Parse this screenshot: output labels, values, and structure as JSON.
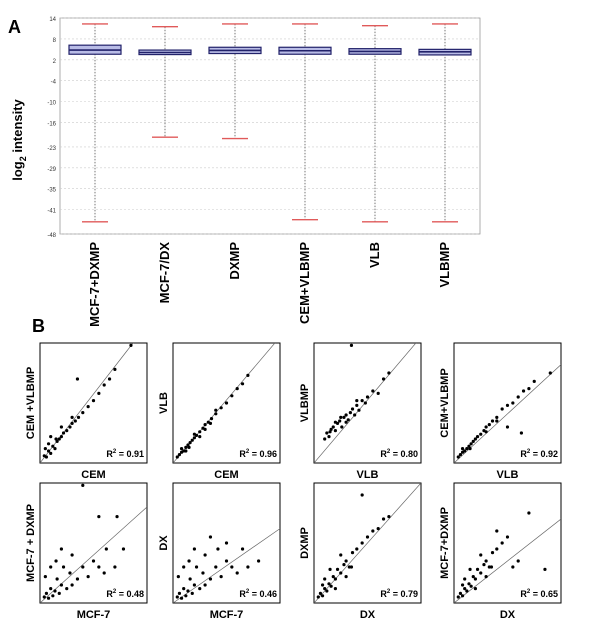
{
  "panel_a": {
    "label": "A",
    "ylabel": "log",
    "ylabel_sub": "2",
    "ylabel_rest": " intensity",
    "colors": {
      "box_fill": "#b9bce6",
      "box_stroke": "#22226a",
      "whisker_cap": "#e05a5a",
      "grid": "#cccccc"
    }
  },
  "panel_b": {
    "label": "B"
  },
  "chart_data": [
    {
      "type": "box",
      "title": "",
      "ylabel": "log2 intensity",
      "ylim": [
        -48,
        14
      ],
      "yticks": [
        14,
        8,
        2,
        -4,
        -10,
        -16,
        -23,
        -29,
        -35,
        -41,
        -48
      ],
      "categories": [
        "MCF-7+DXMP",
        "MCF-7/DX",
        "DXMP",
        "CEM+VLBMP",
        "VLB",
        "VLBMP"
      ],
      "whisker_high": [
        12.3,
        11.5,
        12.3,
        12.3,
        11.8,
        12.3
      ],
      "q3": [
        6.2,
        4.8,
        5.6,
        5.6,
        5.2,
        5.0
      ],
      "median": [
        4.8,
        4.1,
        4.7,
        4.6,
        4.4,
        4.3
      ],
      "q1": [
        3.6,
        3.5,
        3.8,
        3.6,
        3.6,
        3.4
      ],
      "whisker_low": [
        -44.5,
        -20.2,
        -20.6,
        -43.9,
        -44.5,
        -44.5
      ]
    },
    {
      "type": "scatter",
      "xlabel": "CEM",
      "ylabel": "CEM +VLBMP",
      "r2_label": "R",
      "r2_value": " = 0.91",
      "fit": [
        [
          0,
          0
        ],
        [
          1,
          1.15
        ]
      ],
      "points": [
        [
          0.04,
          0.06
        ],
        [
          0.06,
          0.05
        ],
        [
          0.08,
          0.1
        ],
        [
          0.1,
          0.08
        ],
        [
          0.12,
          0.14
        ],
        [
          0.14,
          0.12
        ],
        [
          0.05,
          0.12
        ],
        [
          0.16,
          0.18
        ],
        [
          0.18,
          0.2
        ],
        [
          0.2,
          0.22
        ],
        [
          0.22,
          0.25
        ],
        [
          0.25,
          0.27
        ],
        [
          0.28,
          0.3
        ],
        [
          0.3,
          0.33
        ],
        [
          0.33,
          0.35
        ],
        [
          0.36,
          0.38
        ],
        [
          0.4,
          0.42
        ],
        [
          0.45,
          0.47
        ],
        [
          0.5,
          0.52
        ],
        [
          0.55,
          0.58
        ],
        [
          0.6,
          0.65
        ],
        [
          0.65,
          0.7
        ],
        [
          0.7,
          0.78
        ],
        [
          0.35,
          0.7
        ],
        [
          0.85,
          0.98
        ],
        [
          0.1,
          0.22
        ],
        [
          0.2,
          0.3
        ],
        [
          0.3,
          0.38
        ],
        [
          0.15,
          0.2
        ],
        [
          0.08,
          0.16
        ]
      ]
    },
    {
      "type": "scatter",
      "xlabel": "CEM",
      "ylabel": "VLB",
      "r2_label": "R",
      "r2_value": " = 0.96",
      "fit": [
        [
          0,
          0
        ],
        [
          1,
          1.05
        ]
      ],
      "points": [
        [
          0.04,
          0.05
        ],
        [
          0.06,
          0.07
        ],
        [
          0.08,
          0.09
        ],
        [
          0.1,
          0.1
        ],
        [
          0.12,
          0.13
        ],
        [
          0.14,
          0.15
        ],
        [
          0.16,
          0.17
        ],
        [
          0.18,
          0.19
        ],
        [
          0.2,
          0.21
        ],
        [
          0.22,
          0.23
        ],
        [
          0.25,
          0.26
        ],
        [
          0.28,
          0.29
        ],
        [
          0.3,
          0.32
        ],
        [
          0.33,
          0.34
        ],
        [
          0.36,
          0.37
        ],
        [
          0.4,
          0.41
        ],
        [
          0.45,
          0.46
        ],
        [
          0.5,
          0.5
        ],
        [
          0.55,
          0.56
        ],
        [
          0.6,
          0.62
        ],
        [
          0.65,
          0.66
        ],
        [
          0.7,
          0.73
        ],
        [
          0.08,
          0.12
        ],
        [
          0.12,
          0.1
        ],
        [
          0.2,
          0.24
        ],
        [
          0.3,
          0.28
        ],
        [
          0.4,
          0.44
        ],
        [
          0.15,
          0.13
        ],
        [
          0.25,
          0.22
        ],
        [
          0.35,
          0.33
        ]
      ]
    },
    {
      "type": "scatter",
      "xlabel": "VLB",
      "ylabel": "VLBMP",
      "r2_label": "R",
      "r2_value": " = 0.80",
      "fit": [
        [
          0,
          0
        ],
        [
          1,
          1.05
        ]
      ],
      "points": [
        [
          0.1,
          0.2
        ],
        [
          0.12,
          0.25
        ],
        [
          0.14,
          0.22
        ],
        [
          0.16,
          0.28
        ],
        [
          0.18,
          0.3
        ],
        [
          0.2,
          0.27
        ],
        [
          0.22,
          0.33
        ],
        [
          0.24,
          0.35
        ],
        [
          0.26,
          0.3
        ],
        [
          0.28,
          0.38
        ],
        [
          0.3,
          0.4
        ],
        [
          0.32,
          0.36
        ],
        [
          0.34,
          0.42
        ],
        [
          0.36,
          0.45
        ],
        [
          0.38,
          0.4
        ],
        [
          0.4,
          0.48
        ],
        [
          0.42,
          0.44
        ],
        [
          0.45,
          0.52
        ],
        [
          0.5,
          0.55
        ],
        [
          0.55,
          0.6
        ],
        [
          0.6,
          0.58
        ],
        [
          0.65,
          0.7
        ],
        [
          0.7,
          0.75
        ],
        [
          0.35,
          0.98
        ],
        [
          0.15,
          0.26
        ],
        [
          0.2,
          0.34
        ],
        [
          0.25,
          0.38
        ],
        [
          0.3,
          0.34
        ],
        [
          0.4,
          0.52
        ],
        [
          0.48,
          0.5
        ]
      ]
    },
    {
      "type": "scatter",
      "xlabel": "VLB",
      "ylabel": "CEM+VLBMP",
      "r2_label": "R",
      "r2_value": " = 0.92",
      "fit": [
        [
          0,
          0
        ],
        [
          1,
          0.82
        ]
      ],
      "points": [
        [
          0.04,
          0.05
        ],
        [
          0.06,
          0.07
        ],
        [
          0.08,
          0.09
        ],
        [
          0.1,
          0.1
        ],
        [
          0.12,
          0.12
        ],
        [
          0.14,
          0.14
        ],
        [
          0.16,
          0.16
        ],
        [
          0.18,
          0.18
        ],
        [
          0.2,
          0.2
        ],
        [
          0.22,
          0.22
        ],
        [
          0.25,
          0.24
        ],
        [
          0.28,
          0.27
        ],
        [
          0.3,
          0.3
        ],
        [
          0.33,
          0.32
        ],
        [
          0.36,
          0.35
        ],
        [
          0.4,
          0.38
        ],
        [
          0.45,
          0.45
        ],
        [
          0.5,
          0.48
        ],
        [
          0.55,
          0.5
        ],
        [
          0.6,
          0.55
        ],
        [
          0.65,
          0.6
        ],
        [
          0.75,
          0.68
        ],
        [
          0.9,
          0.75
        ],
        [
          0.63,
          0.25
        ],
        [
          0.5,
          0.3
        ],
        [
          0.08,
          0.12
        ],
        [
          0.15,
          0.12
        ],
        [
          0.3,
          0.26
        ],
        [
          0.4,
          0.35
        ],
        [
          0.7,
          0.62
        ]
      ]
    },
    {
      "type": "scatter",
      "xlabel": "MCF-7",
      "ylabel": "MCF-7 + DXMP",
      "r2_label": "R",
      "r2_value": " = 0.48",
      "fit": [
        [
          0,
          0
        ],
        [
          1,
          0.8
        ]
      ],
      "points": [
        [
          0.04,
          0.05
        ],
        [
          0.06,
          0.08
        ],
        [
          0.08,
          0.04
        ],
        [
          0.1,
          0.12
        ],
        [
          0.12,
          0.06
        ],
        [
          0.14,
          0.1
        ],
        [
          0.16,
          0.2
        ],
        [
          0.18,
          0.08
        ],
        [
          0.2,
          0.15
        ],
        [
          0.22,
          0.3
        ],
        [
          0.25,
          0.12
        ],
        [
          0.28,
          0.25
        ],
        [
          0.3,
          0.4
        ],
        [
          0.35,
          0.2
        ],
        [
          0.4,
          0.3
        ],
        [
          0.45,
          0.22
        ],
        [
          0.5,
          0.35
        ],
        [
          0.55,
          0.3
        ],
        [
          0.6,
          0.25
        ],
        [
          0.4,
          0.98
        ],
        [
          0.72,
          0.72
        ],
        [
          0.55,
          0.72
        ],
        [
          0.62,
          0.45
        ],
        [
          0.78,
          0.45
        ],
        [
          0.05,
          0.22
        ],
        [
          0.1,
          0.3
        ],
        [
          0.2,
          0.45
        ],
        [
          0.3,
          0.15
        ],
        [
          0.7,
          0.3
        ],
        [
          0.15,
          0.35
        ]
      ]
    },
    {
      "type": "scatter",
      "xlabel": "MCF-7",
      "ylabel": "DX",
      "r2_label": "R",
      "r2_value": " = 0.46",
      "fit": [
        [
          0,
          0
        ],
        [
          1,
          0.62
        ]
      ],
      "points": [
        [
          0.04,
          0.05
        ],
        [
          0.06,
          0.08
        ],
        [
          0.08,
          0.04
        ],
        [
          0.1,
          0.12
        ],
        [
          0.12,
          0.06
        ],
        [
          0.14,
          0.1
        ],
        [
          0.16,
          0.2
        ],
        [
          0.18,
          0.08
        ],
        [
          0.2,
          0.15
        ],
        [
          0.22,
          0.3
        ],
        [
          0.25,
          0.12
        ],
        [
          0.28,
          0.25
        ],
        [
          0.3,
          0.4
        ],
        [
          0.35,
          0.2
        ],
        [
          0.4,
          0.3
        ],
        [
          0.45,
          0.22
        ],
        [
          0.5,
          0.35
        ],
        [
          0.55,
          0.3
        ],
        [
          0.6,
          0.25
        ],
        [
          0.35,
          0.55
        ],
        [
          0.5,
          0.5
        ],
        [
          0.65,
          0.45
        ],
        [
          0.8,
          0.35
        ],
        [
          0.05,
          0.22
        ],
        [
          0.1,
          0.3
        ],
        [
          0.2,
          0.45
        ],
        [
          0.3,
          0.15
        ],
        [
          0.7,
          0.3
        ],
        [
          0.15,
          0.35
        ],
        [
          0.42,
          0.45
        ]
      ]
    },
    {
      "type": "scatter",
      "xlabel": "DX",
      "ylabel": "DXMP",
      "r2_label": "R",
      "r2_value": " = 0.79",
      "fit": [
        [
          0,
          0
        ],
        [
          1,
          1.0
        ]
      ],
      "points": [
        [
          0.04,
          0.05
        ],
        [
          0.06,
          0.08
        ],
        [
          0.08,
          0.06
        ],
        [
          0.1,
          0.12
        ],
        [
          0.12,
          0.1
        ],
        [
          0.14,
          0.16
        ],
        [
          0.16,
          0.14
        ],
        [
          0.18,
          0.22
        ],
        [
          0.2,
          0.2
        ],
        [
          0.22,
          0.28
        ],
        [
          0.25,
          0.25
        ],
        [
          0.28,
          0.32
        ],
        [
          0.3,
          0.35
        ],
        [
          0.33,
          0.3
        ],
        [
          0.36,
          0.42
        ],
        [
          0.4,
          0.45
        ],
        [
          0.45,
          0.5
        ],
        [
          0.5,
          0.55
        ],
        [
          0.55,
          0.6
        ],
        [
          0.6,
          0.62
        ],
        [
          0.65,
          0.7
        ],
        [
          0.45,
          0.9
        ],
        [
          0.7,
          0.72
        ],
        [
          0.1,
          0.2
        ],
        [
          0.15,
          0.28
        ],
        [
          0.25,
          0.4
        ],
        [
          0.2,
          0.12
        ],
        [
          0.35,
          0.3
        ],
        [
          0.08,
          0.15
        ],
        [
          0.3,
          0.22
        ]
      ]
    },
    {
      "type": "scatter",
      "xlabel": "DX",
      "ylabel": "MCF-7+DXMP",
      "r2_label": "R",
      "r2_value": " = 0.65",
      "fit": [
        [
          0,
          0
        ],
        [
          1,
          0.7
        ]
      ],
      "points": [
        [
          0.04,
          0.05
        ],
        [
          0.06,
          0.08
        ],
        [
          0.08,
          0.06
        ],
        [
          0.1,
          0.12
        ],
        [
          0.12,
          0.1
        ],
        [
          0.14,
          0.16
        ],
        [
          0.16,
          0.14
        ],
        [
          0.18,
          0.22
        ],
        [
          0.2,
          0.2
        ],
        [
          0.22,
          0.28
        ],
        [
          0.25,
          0.25
        ],
        [
          0.28,
          0.32
        ],
        [
          0.3,
          0.35
        ],
        [
          0.33,
          0.3
        ],
        [
          0.36,
          0.42
        ],
        [
          0.4,
          0.45
        ],
        [
          0.45,
          0.5
        ],
        [
          0.5,
          0.55
        ],
        [
          0.55,
          0.3
        ],
        [
          0.6,
          0.35
        ],
        [
          0.7,
          0.75
        ],
        [
          0.85,
          0.28
        ],
        [
          0.1,
          0.2
        ],
        [
          0.15,
          0.28
        ],
        [
          0.25,
          0.4
        ],
        [
          0.2,
          0.12
        ],
        [
          0.35,
          0.3
        ],
        [
          0.08,
          0.15
        ],
        [
          0.3,
          0.22
        ],
        [
          0.4,
          0.6
        ]
      ]
    }
  ]
}
